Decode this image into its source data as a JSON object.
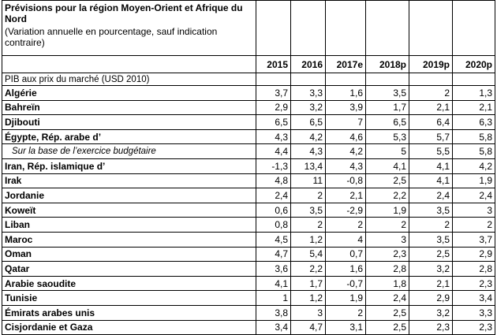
{
  "header": {
    "title": "Prévisions pour la région Moyen-Orient et Afrique du Nord",
    "subtitle": "(Variation annuelle en pourcentage, sauf indication contraire)"
  },
  "table": {
    "columns": [
      "2015",
      "2016",
      "2017e",
      "2018p",
      "2019p",
      "2020p"
    ],
    "section_label": "PIB aux prix du marché (USD 2010)",
    "rows": [
      {
        "label": "Algérie",
        "values": [
          "3,7",
          "3,3",
          "1,6",
          "3,5",
          "2",
          "1,3"
        ]
      },
      {
        "label": "Bahreïn",
        "values": [
          "2,9",
          "3,2",
          "3,9",
          "1,7",
          "2,1",
          "2,1"
        ]
      },
      {
        "label": "Djibouti",
        "values": [
          "6,5",
          "6,5",
          "7",
          "6,5",
          "6,4",
          "6,3"
        ]
      },
      {
        "label": "Égypte, Rép. arabe d’",
        "values": [
          "4,3",
          "4,2",
          "4,6",
          "5,3",
          "5,7",
          "5,8"
        ]
      },
      {
        "label": "Sur la base de l’exercice budgétaire",
        "values": [
          "4,4",
          "4,3",
          "4,2",
          "5",
          "5,5",
          "5,8"
        ]
      },
      {
        "label": "Iran, Rép. islamique d’",
        "values": [
          "-1,3",
          "13,4",
          "4,3",
          "4,1",
          "4,1",
          "4,2"
        ]
      },
      {
        "label": "Irak",
        "values": [
          "4,8",
          "11",
          "-0,8",
          "2,5",
          "4,1",
          "1,9"
        ]
      },
      {
        "label": "Jordanie",
        "values": [
          "2,4",
          "2",
          "2,1",
          "2,2",
          "2,4",
          "2,4"
        ]
      },
      {
        "label": "Koweït",
        "values": [
          "0,6",
          "3,5",
          "-2,9",
          "1,9",
          "3,5",
          "3"
        ]
      },
      {
        "label": "Liban",
        "values": [
          "0,8",
          "2",
          "2",
          "2",
          "2",
          "2"
        ]
      },
      {
        "label": "Maroc",
        "values": [
          "4,5",
          "1,2",
          "4",
          "3",
          "3,5",
          "3,7"
        ]
      },
      {
        "label": "Oman",
        "values": [
          "4,7",
          "5,4",
          "0,7",
          "2,3",
          "2,5",
          "2,9"
        ]
      },
      {
        "label": "Qatar",
        "values": [
          "3,6",
          "2,2",
          "1,6",
          "2,8",
          "3,2",
          "2,8"
        ]
      },
      {
        "label": "Arabie saoudite",
        "values": [
          "4,1",
          "1,7",
          "-0,7",
          "1,8",
          "2,1",
          "2,3"
        ]
      },
      {
        "label": "Tunisie",
        "values": [
          "1",
          "1,2",
          "1,9",
          "2,4",
          "2,9",
          "3,4"
        ]
      },
      {
        "label": "Émirats arabes unis",
        "values": [
          "3,8",
          "3",
          "2",
          "2,5",
          "3,2",
          "3,3"
        ]
      },
      {
        "label": "Cisjordanie et Gaza",
        "values": [
          "3,4",
          "4,7",
          "3,1",
          "2,5",
          "2,3",
          "2,3"
        ]
      }
    ]
  }
}
